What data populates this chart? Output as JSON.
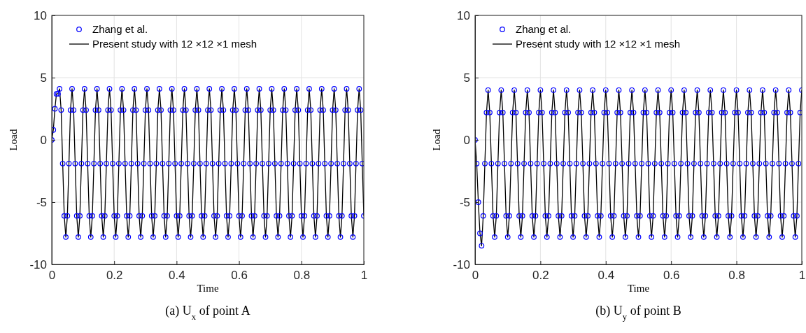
{
  "chart_data": [
    {
      "type": "scatter",
      "title": "(a) U$_{x}$ of point A",
      "xlabel": "Time",
      "ylabel": "Load",
      "xlim": [
        0,
        1
      ],
      "ylim": [
        -10,
        10
      ],
      "xticks": [
        0,
        0.2,
        0.4,
        0.6,
        0.8,
        1
      ],
      "yticks": [
        -10,
        -5,
        0,
        5,
        10
      ],
      "grid": true,
      "legend": "top left",
      "x": [
        0,
        0.005,
        0.01,
        0.015,
        0.02,
        0.025,
        0.03,
        0.035,
        0.04,
        0.045,
        0.05,
        0.055,
        0.06,
        0.065,
        0.07,
        0.075,
        0.08,
        0.085,
        0.09,
        0.095,
        0.1,
        0.105,
        0.11,
        0.115,
        0.12,
        0.125,
        0.13,
        0.135,
        0.14,
        0.145,
        0.15,
        0.155,
        0.16,
        0.165,
        0.17,
        0.175,
        0.18,
        0.185,
        0.19,
        0.195,
        0.2,
        0.205,
        0.21,
        0.215,
        0.22,
        0.225,
        0.23,
        0.235,
        0.24,
        0.245,
        0.25,
        0.255,
        0.26,
        0.265,
        0.27,
        0.275,
        0.28,
        0.285,
        0.29,
        0.295,
        0.3,
        0.305,
        0.31,
        0.315,
        0.32,
        0.325,
        0.33,
        0.335,
        0.34,
        0.345,
        0.35,
        0.355,
        0.36,
        0.365,
        0.37,
        0.375,
        0.38,
        0.385,
        0.39,
        0.395,
        0.4,
        0.405,
        0.41,
        0.415,
        0.42,
        0.425,
        0.43,
        0.435,
        0.44,
        0.445,
        0.45,
        0.455,
        0.46,
        0.465,
        0.47,
        0.475,
        0.48,
        0.485,
        0.49,
        0.495,
        0.5,
        0.505,
        0.51,
        0.515,
        0.52,
        0.525,
        0.53,
        0.535,
        0.54,
        0.545,
        0.55,
        0.555,
        0.56,
        0.565,
        0.57,
        0.575,
        0.58,
        0.585,
        0.59,
        0.595,
        0.6,
        0.605,
        0.61,
        0.615,
        0.62,
        0.625,
        0.63,
        0.635,
        0.64,
        0.645,
        0.65,
        0.655,
        0.66,
        0.665,
        0.67,
        0.675,
        0.68,
        0.685,
        0.69,
        0.695,
        0.7,
        0.705,
        0.71,
        0.715,
        0.72,
        0.725,
        0.73,
        0.735,
        0.74,
        0.745,
        0.75,
        0.755,
        0.76,
        0.765,
        0.77,
        0.775,
        0.78,
        0.785,
        0.79,
        0.795,
        0.8,
        0.805,
        0.81,
        0.815,
        0.82,
        0.825,
        0.83,
        0.835,
        0.84,
        0.845,
        0.85,
        0.855,
        0.86,
        0.865,
        0.87,
        0.875,
        0.88,
        0.885,
        0.89,
        0.895,
        0.9,
        0.905,
        0.91,
        0.915,
        0.92,
        0.925,
        0.93,
        0.935,
        0.94,
        0.945,
        0.95,
        0.955,
        0.96,
        0.965,
        0.97,
        0.975,
        0.98,
        0.985,
        0.99,
        0.995,
        1
      ],
      "series": [
        {
          "name": "Zhang et al.",
          "type": "scatter",
          "marker": "circle",
          "color": "#0000ff",
          "values": [
            0,
            0.8,
            2.5,
            3.7,
            3.7,
            4.1,
            2.4,
            -1.9,
            -6.1,
            -7.8,
            -6.1,
            -1.9,
            2.4,
            4.1,
            2.4,
            -1.9,
            -6.1,
            -7.8,
            -6.1,
            -1.9,
            2.4,
            4.1,
            2.4,
            -1.9,
            -6.1,
            -7.8,
            -6.1,
            -1.9,
            2.4,
            4.1,
            2.4,
            -1.9,
            -6.1,
            -7.8,
            -6.1,
            -1.9,
            2.4,
            4.1,
            2.4,
            -1.9,
            -6.1,
            -7.8,
            -6.1,
            -1.9,
            2.4,
            4.1,
            2.4,
            -1.9,
            -6.1,
            -7.8,
            -6.1,
            -1.9,
            2.4,
            4.1,
            2.4,
            -1.9,
            -6.1,
            -7.8,
            -6.1,
            -1.9,
            2.4,
            4.1,
            2.4,
            -1.9,
            -6.1,
            -7.8,
            -6.1,
            -1.9,
            2.4,
            4.1,
            2.4,
            -1.9,
            -6.1,
            -7.8,
            -6.1,
            -1.9,
            2.4,
            4.1,
            2.4,
            -1.9,
            -6.1,
            -7.8,
            -6.1,
            -1.9,
            2.4,
            4.1,
            2.4,
            -1.9,
            -6.1,
            -7.8,
            -6.1,
            -1.9,
            2.4,
            4.1,
            2.4,
            -1.9,
            -6.1,
            -7.8,
            -6.1,
            -1.9,
            2.4,
            4.1,
            2.4,
            -1.9,
            -6.1,
            -7.8,
            -6.1,
            -1.9,
            2.4,
            4.1,
            2.4,
            -1.9,
            -6.1,
            -7.8,
            -6.1,
            -1.9,
            2.4,
            4.1,
            2.4,
            -1.9,
            -6.1,
            -7.8,
            -6.1,
            -1.9,
            2.4,
            4.1,
            2.4,
            -1.9,
            -6.1,
            -7.8,
            -6.1,
            -1.9,
            2.4,
            4.1,
            2.4,
            -1.9,
            -6.1,
            -7.8,
            -6.1,
            -1.9,
            2.4,
            4.1,
            2.4,
            -1.9,
            -6.1,
            -7.8,
            -6.1,
            -1.9,
            2.4,
            4.1,
            2.4,
            -1.9,
            -6.1,
            -7.8,
            -6.1,
            -1.9,
            2.4,
            4.1,
            2.4,
            -1.9,
            -6.1,
            -7.8,
            -6.1,
            -1.9,
            2.4,
            4.1,
            2.4,
            -1.9,
            -6.1,
            -7.8,
            -6.1,
            -1.9,
            2.4,
            4.1,
            2.4,
            -1.9,
            -6.1,
            -7.8,
            -6.1,
            -1.9,
            2.4,
            4.1,
            2.4,
            -1.9,
            -6.1,
            -7.8,
            -6.1,
            -1.9,
            2.4,
            4.1,
            2.4,
            -1.9,
            -6.1,
            -7.8,
            -6.1,
            -1.9,
            2.4,
            4.1,
            2.4,
            -1.9,
            -6.1
          ]
        },
        {
          "name": "Present study with 12 ×12 ×1 mesh",
          "type": "line",
          "marker": "none",
          "line_style": "solid",
          "color": "#000000",
          "values": [
            0,
            0.8,
            2.5,
            3.7,
            3.7,
            4.1,
            2.4,
            -1.9,
            -6.1,
            -7.8,
            -6.1,
            -1.9,
            2.4,
            4.1,
            2.4,
            -1.9,
            -6.1,
            -7.8,
            -6.1,
            -1.9,
            2.4,
            4.1,
            2.4,
            -1.9,
            -6.1,
            -7.8,
            -6.1,
            -1.9,
            2.4,
            4.1,
            2.4,
            -1.9,
            -6.1,
            -7.8,
            -6.1,
            -1.9,
            2.4,
            4.1,
            2.4,
            -1.9,
            -6.1,
            -7.8,
            -6.1,
            -1.9,
            2.4,
            4.1,
            2.4,
            -1.9,
            -6.1,
            -7.8,
            -6.1,
            -1.9,
            2.4,
            4.1,
            2.4,
            -1.9,
            -6.1,
            -7.8,
            -6.1,
            -1.9,
            2.4,
            4.1,
            2.4,
            -1.9,
            -6.1,
            -7.8,
            -6.1,
            -1.9,
            2.4,
            4.1,
            2.4,
            -1.9,
            -6.1,
            -7.8,
            -6.1,
            -1.9,
            2.4,
            4.1,
            2.4,
            -1.9,
            -6.1,
            -7.8,
            -6.1,
            -1.9,
            2.4,
            4.1,
            2.4,
            -1.9,
            -6.1,
            -7.8,
            -6.1,
            -1.9,
            2.4,
            4.1,
            2.4,
            -1.9,
            -6.1,
            -7.8,
            -6.1,
            -1.9,
            2.4,
            4.1,
            2.4,
            -1.9,
            -6.1,
            -7.8,
            -6.1,
            -1.9,
            2.4,
            4.1,
            2.4,
            -1.9,
            -6.1,
            -7.8,
            -6.1,
            -1.9,
            2.4,
            4.1,
            2.4,
            -1.9,
            -6.1,
            -7.8,
            -6.1,
            -1.9,
            2.4,
            4.1,
            2.4,
            -1.9,
            -6.1,
            -7.8,
            -6.1,
            -1.9,
            2.4,
            4.1,
            2.4,
            -1.9,
            -6.1,
            -7.8,
            -6.1,
            -1.9,
            2.4,
            4.1,
            2.4,
            -1.9,
            -6.1,
            -7.8,
            -6.1,
            -1.9,
            2.4,
            4.1,
            2.4,
            -1.9,
            -6.1,
            -7.8,
            -6.1,
            -1.9,
            2.4,
            4.1,
            2.4,
            -1.9,
            -6.1,
            -7.8,
            -6.1,
            -1.9,
            2.4,
            4.1,
            2.4,
            -1.9,
            -6.1,
            -7.8,
            -6.1,
            -1.9,
            2.4,
            4.1,
            2.4,
            -1.9,
            -6.1,
            -7.8,
            -6.1,
            -1.9,
            2.4,
            4.1,
            2.4,
            -1.9,
            -6.1,
            -7.8,
            -6.1,
            -1.9,
            2.4,
            4.1,
            2.4,
            -1.9,
            -6.1,
            -7.8,
            -6.1,
            -1.9,
            2.4,
            4.1,
            2.4,
            -1.9,
            -6.1
          ]
        }
      ]
    },
    {
      "type": "scatter",
      "title": "(b) U$_{y}$ of point B",
      "xlabel": "Time",
      "ylabel": "Load",
      "xlim": [
        0,
        1
      ],
      "ylim": [
        -10,
        10
      ],
      "xticks": [
        0,
        0.2,
        0.4,
        0.6,
        0.8,
        1
      ],
      "yticks": [
        -10,
        -5,
        0,
        5,
        10
      ],
      "grid": true,
      "legend": "top left",
      "x": [
        0,
        0.005,
        0.01,
        0.015,
        0.02,
        0.025,
        0.03,
        0.035,
        0.04,
        0.045,
        0.05,
        0.055,
        0.06,
        0.065,
        0.07,
        0.075,
        0.08,
        0.085,
        0.09,
        0.095,
        0.1,
        0.105,
        0.11,
        0.115,
        0.12,
        0.125,
        0.13,
        0.135,
        0.14,
        0.145,
        0.15,
        0.155,
        0.16,
        0.165,
        0.17,
        0.175,
        0.18,
        0.185,
        0.19,
        0.195,
        0.2,
        0.205,
        0.21,
        0.215,
        0.22,
        0.225,
        0.23,
        0.235,
        0.24,
        0.245,
        0.25,
        0.255,
        0.26,
        0.265,
        0.27,
        0.275,
        0.28,
        0.285,
        0.29,
        0.295,
        0.3,
        0.305,
        0.31,
        0.315,
        0.32,
        0.325,
        0.33,
        0.335,
        0.34,
        0.345,
        0.35,
        0.355,
        0.36,
        0.365,
        0.37,
        0.375,
        0.38,
        0.385,
        0.39,
        0.395,
        0.4,
        0.405,
        0.41,
        0.415,
        0.42,
        0.425,
        0.43,
        0.435,
        0.44,
        0.445,
        0.45,
        0.455,
        0.46,
        0.465,
        0.47,
        0.475,
        0.48,
        0.485,
        0.49,
        0.495,
        0.5,
        0.505,
        0.51,
        0.515,
        0.52,
        0.525,
        0.53,
        0.535,
        0.54,
        0.545,
        0.55,
        0.555,
        0.56,
        0.565,
        0.57,
        0.575,
        0.58,
        0.585,
        0.59,
        0.595,
        0.6,
        0.605,
        0.61,
        0.615,
        0.62,
        0.625,
        0.63,
        0.635,
        0.64,
        0.645,
        0.65,
        0.655,
        0.66,
        0.665,
        0.67,
        0.675,
        0.68,
        0.685,
        0.69,
        0.695,
        0.7,
        0.705,
        0.71,
        0.715,
        0.72,
        0.725,
        0.73,
        0.735,
        0.74,
        0.745,
        0.75,
        0.755,
        0.76,
        0.765,
        0.77,
        0.775,
        0.78,
        0.785,
        0.79,
        0.795,
        0.8,
        0.805,
        0.81,
        0.815,
        0.82,
        0.825,
        0.83,
        0.835,
        0.84,
        0.845,
        0.85,
        0.855,
        0.86,
        0.865,
        0.87,
        0.875,
        0.88,
        0.885,
        0.89,
        0.895,
        0.9,
        0.905,
        0.91,
        0.915,
        0.92,
        0.925,
        0.93,
        0.935,
        0.94,
        0.945,
        0.95,
        0.955,
        0.96,
        0.965,
        0.97,
        0.975,
        0.98,
        0.985,
        0.99,
        0.995,
        1
      ],
      "series": [
        {
          "name": "Zhang et al.",
          "type": "scatter",
          "marker": "circle",
          "color": "#0000ff",
          "values": [
            0,
            -1.9,
            -5.0,
            -7.5,
            -8.5,
            -6.1,
            -1.9,
            2.2,
            4.0,
            2.2,
            -1.9,
            -6.1,
            -7.8,
            -6.1,
            -1.9,
            2.2,
            4.0,
            2.2,
            -1.9,
            -6.1,
            -7.8,
            -6.1,
            -1.9,
            2.2,
            4.0,
            2.2,
            -1.9,
            -6.1,
            -7.8,
            -6.1,
            -1.9,
            2.2,
            4.0,
            2.2,
            -1.9,
            -6.1,
            -7.8,
            -6.1,
            -1.9,
            2.2,
            4.0,
            2.2,
            -1.9,
            -6.1,
            -7.8,
            -6.1,
            -1.9,
            2.2,
            4.0,
            2.2,
            -1.9,
            -6.1,
            -7.8,
            -6.1,
            -1.9,
            2.2,
            4.0,
            2.2,
            -1.9,
            -6.1,
            -7.8,
            -6.1,
            -1.9,
            2.2,
            4.0,
            2.2,
            -1.9,
            -6.1,
            -7.8,
            -6.1,
            -1.9,
            2.2,
            4.0,
            2.2,
            -1.9,
            -6.1,
            -7.8,
            -6.1,
            -1.9,
            2.2,
            4.0,
            2.2,
            -1.9,
            -6.1,
            -7.8,
            -6.1,
            -1.9,
            2.2,
            4.0,
            2.2,
            -1.9,
            -6.1,
            -7.8,
            -6.1,
            -1.9,
            2.2,
            4.0,
            2.2,
            -1.9,
            -6.1,
            -7.8,
            -6.1,
            -1.9,
            2.2,
            4.0,
            2.2,
            -1.9,
            -6.1,
            -7.8,
            -6.1,
            -1.9,
            2.2,
            4.0,
            2.2,
            -1.9,
            -6.1,
            -7.8,
            -6.1,
            -1.9,
            2.2,
            4.0,
            2.2,
            -1.9,
            -6.1,
            -7.8,
            -6.1,
            -1.9,
            2.2,
            4.0,
            2.2,
            -1.9,
            -6.1,
            -7.8,
            -6.1,
            -1.9,
            2.2,
            4.0,
            2.2,
            -1.9,
            -6.1,
            -7.8,
            -6.1,
            -1.9,
            2.2,
            4.0,
            2.2,
            -1.9,
            -6.1,
            -7.8,
            -6.1,
            -1.9,
            2.2,
            4.0,
            2.2,
            -1.9,
            -6.1,
            -7.8,
            -6.1,
            -1.9,
            2.2,
            4.0,
            2.2,
            -1.9,
            -6.1,
            -7.8,
            -6.1,
            -1.9,
            2.2,
            4.0,
            2.2,
            -1.9,
            -6.1,
            -7.8,
            -6.1,
            -1.9,
            2.2,
            4.0,
            2.2,
            -1.9,
            -6.1,
            -7.8,
            -6.1,
            -1.9,
            2.2,
            4.0,
            2.2,
            -1.9,
            -6.1,
            -7.8,
            -6.1,
            -1.9,
            2.2,
            4.0,
            2.2,
            -1.9,
            -6.1,
            -7.8,
            -6.1,
            -1.9,
            2.2,
            4.0
          ]
        },
        {
          "name": "Present study with 12 ×12 ×1 mesh",
          "type": "line",
          "marker": "none",
          "line_style": "solid",
          "color": "#000000",
          "values": [
            0,
            -1.9,
            -5.0,
            -7.5,
            -8.5,
            -6.1,
            -1.9,
            2.2,
            4.0,
            2.2,
            -1.9,
            -6.1,
            -7.8,
            -6.1,
            -1.9,
            2.2,
            4.0,
            2.2,
            -1.9,
            -6.1,
            -7.8,
            -6.1,
            -1.9,
            2.2,
            4.0,
            2.2,
            -1.9,
            -6.1,
            -7.8,
            -6.1,
            -1.9,
            2.2,
            4.0,
            2.2,
            -1.9,
            -6.1,
            -7.8,
            -6.1,
            -1.9,
            2.2,
            4.0,
            2.2,
            -1.9,
            -6.1,
            -7.8,
            -6.1,
            -1.9,
            2.2,
            4.0,
            2.2,
            -1.9,
            -6.1,
            -7.8,
            -6.1,
            -1.9,
            2.2,
            4.0,
            2.2,
            -1.9,
            -6.1,
            -7.8,
            -6.1,
            -1.9,
            2.2,
            4.0,
            2.2,
            -1.9,
            -6.1,
            -7.8,
            -6.1,
            -1.9,
            2.2,
            4.0,
            2.2,
            -1.9,
            -6.1,
            -7.8,
            -6.1,
            -1.9,
            2.2,
            4.0,
            2.2,
            -1.9,
            -6.1,
            -7.8,
            -6.1,
            -1.9,
            2.2,
            4.0,
            2.2,
            -1.9,
            -6.1,
            -7.8,
            -6.1,
            -1.9,
            2.2,
            4.0,
            2.2,
            -1.9,
            -6.1,
            -7.8,
            -6.1,
            -1.9,
            2.2,
            4.0,
            2.2,
            -1.9,
            -6.1,
            -7.8,
            -6.1,
            -1.9,
            2.2,
            4.0,
            2.2,
            -1.9,
            -6.1,
            -7.8,
            -6.1,
            -1.9,
            2.2,
            4.0,
            2.2,
            -1.9,
            -6.1,
            -7.8,
            -6.1,
            -1.9,
            2.2,
            4.0,
            2.2,
            -1.9,
            -6.1,
            -7.8,
            -6.1,
            -1.9,
            2.2,
            4.0,
            2.2,
            -1.9,
            -6.1,
            -7.8,
            -6.1,
            -1.9,
            2.2,
            4.0,
            2.2,
            -1.9,
            -6.1,
            -7.8,
            -6.1,
            -1.9,
            2.2,
            4.0,
            2.2,
            -1.9,
            -6.1,
            -7.8,
            -6.1,
            -1.9,
            2.2,
            4.0,
            2.2,
            -1.9,
            -6.1,
            -7.8,
            -6.1,
            -1.9,
            2.2,
            4.0,
            2.2,
            -1.9,
            -6.1,
            -7.8,
            -6.1,
            -1.9,
            2.2,
            4.0,
            2.2,
            -1.9,
            -6.1,
            -7.8,
            -6.1,
            -1.9,
            2.2,
            4.0,
            2.2,
            -1.9,
            -6.1,
            -7.8,
            -6.1,
            -1.9,
            2.2,
            4.0,
            2.2,
            -1.9,
            -6.1,
            -7.8,
            -6.1,
            -1.9,
            2.2,
            4.0
          ]
        }
      ]
    }
  ]
}
